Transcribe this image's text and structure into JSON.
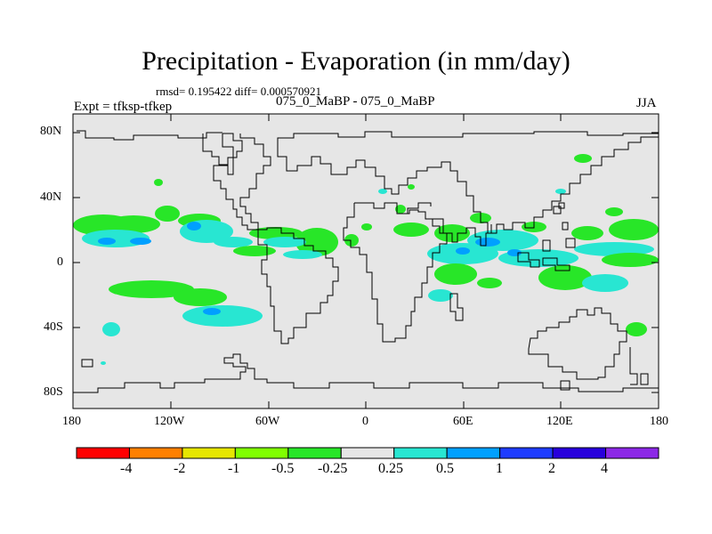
{
  "title": "Precipitation - Evaporation (in mm/day)",
  "stats": "rmsd= 0.195422 diff= 0.000570921",
  "subtitle": "075_0_MaBP - 075_0_MaBP",
  "left_label": "Expt = tfksp-tfkep",
  "right_label": "JJA",
  "lat_labels": [
    "80N",
    "40N",
    "0",
    "40S",
    "80S"
  ],
  "lon_labels": [
    "180",
    "120W",
    "60W",
    "0",
    "60E",
    "120E",
    "180"
  ],
  "colorbar": {
    "labels": [
      "-4",
      "-2",
      "-1",
      "-0.5",
      "-0.25",
      "0.25",
      "0.5",
      "1",
      "2",
      "4"
    ],
    "colors": [
      "#ff0000",
      "#ff8000",
      "#e6e600",
      "#80ff00",
      "#28e628",
      "#e6e6e6",
      "#28e6d2",
      "#00a0ff",
      "#1e3cff",
      "#2800dc",
      "#8c28e6"
    ]
  },
  "map_colors": {
    "background": "#e6e6e6",
    "coast": "#000000"
  }
}
